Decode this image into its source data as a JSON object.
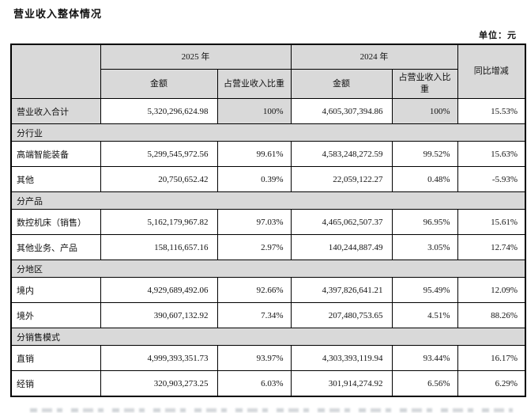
{
  "page": {
    "title": "营业收入整体情况",
    "unit_label": "单位：元"
  },
  "colors": {
    "header_bg": "#d9d9d9",
    "section_bg": "#d9d9d9",
    "border": "#000000",
    "text": "#111111"
  },
  "table": {
    "header": {
      "category_blank": "",
      "year_2025": "2025 年",
      "year_2024": "2024 年",
      "amount_2025": "金额",
      "share_2025": "占营业收入比重",
      "amount_2024": "金额",
      "share_2024": "占营业收入比重",
      "yoy": "同比增减"
    },
    "rows": [
      {
        "type": "data",
        "label": "营业收入合计",
        "amount_2025": "5,320,296,624.98",
        "share_2025": "100%",
        "amount_2024": "4,605,307,394.86",
        "share_2024": "100%",
        "yoy": "15.53%",
        "shaded": true
      },
      {
        "type": "section",
        "label": "分行业"
      },
      {
        "type": "data",
        "label": "高端智能装备",
        "amount_2025": "5,299,545,972.56",
        "share_2025": "99.61%",
        "amount_2024": "4,583,248,272.59",
        "share_2024": "99.52%",
        "yoy": "15.63%"
      },
      {
        "type": "data",
        "label": "其他",
        "amount_2025": "20,750,652.42",
        "share_2025": "0.39%",
        "amount_2024": "22,059,122.27",
        "share_2024": "0.48%",
        "yoy": "-5.93%"
      },
      {
        "type": "section",
        "label": "分产品"
      },
      {
        "type": "data",
        "label": "数控机床（销售）",
        "amount_2025": "5,162,179,967.82",
        "share_2025": "97.03%",
        "amount_2024": "4,465,062,507.37",
        "share_2024": "96.95%",
        "yoy": "15.61%"
      },
      {
        "type": "data",
        "label": "其他业务、产品",
        "amount_2025": "158,116,657.16",
        "share_2025": "2.97%",
        "amount_2024": "140,244,887.49",
        "share_2024": "3.05%",
        "yoy": "12.74%"
      },
      {
        "type": "section",
        "label": "分地区"
      },
      {
        "type": "data",
        "label": "境内",
        "amount_2025": "4,929,689,492.06",
        "share_2025": "92.66%",
        "amount_2024": "4,397,826,641.21",
        "share_2024": "95.49%",
        "yoy": "12.09%"
      },
      {
        "type": "data",
        "label": "境外",
        "amount_2025": "390,607,132.92",
        "share_2025": "7.34%",
        "amount_2024": "207,480,753.65",
        "share_2024": "4.51%",
        "yoy": "88.26%"
      },
      {
        "type": "section",
        "label": "分销售模式"
      },
      {
        "type": "data",
        "label": "直销",
        "amount_2025": "4,999,393,351.73",
        "share_2025": "93.97%",
        "amount_2024": "4,303,393,119.94",
        "share_2024": "93.44%",
        "yoy": "16.17%"
      },
      {
        "type": "data",
        "label": "经销",
        "amount_2025": "320,903,273.25",
        "share_2025": "6.03%",
        "amount_2024": "301,914,274.92",
        "share_2024": "6.56%",
        "yoy": "6.29%"
      }
    ]
  }
}
